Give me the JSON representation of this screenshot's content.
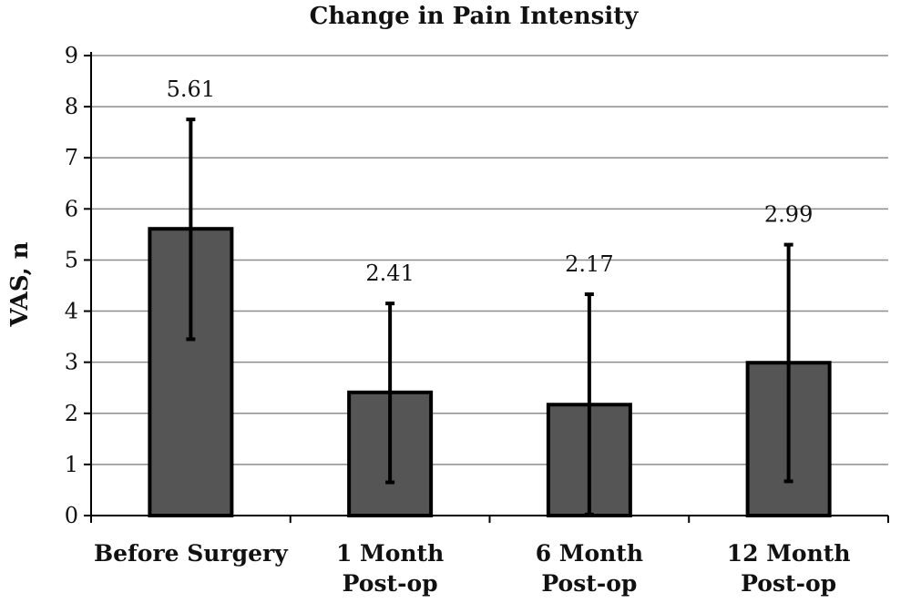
{
  "chart_data": {
    "type": "bar",
    "title": "Change in Pain Intensity",
    "xlabel": "",
    "ylabel": "VAS, n",
    "ylim": [
      0,
      9
    ],
    "yticks": [
      "0",
      "1",
      "2",
      "3",
      "4",
      "5",
      "6",
      "7",
      "8",
      "9"
    ],
    "categories": [
      [
        "Before Surgery"
      ],
      [
        "1 Month",
        "Post-op"
      ],
      [
        "6 Month",
        "Post-op"
      ],
      [
        "12 Month",
        "Post-op"
      ]
    ],
    "values": [
      5.61,
      2.41,
      2.17,
      2.99
    ],
    "data_labels": [
      "5.61",
      "2.41",
      "2.17",
      "2.99"
    ],
    "error_bars": [
      {
        "low": 3.45,
        "high": 7.75
      },
      {
        "low": 0.65,
        "high": 4.15
      },
      {
        "low": 0.02,
        "high": 4.33
      },
      {
        "low": 0.67,
        "high": 5.3
      }
    ],
    "grid": true,
    "colors": {
      "bar": "#555555",
      "bar_edge": "#000000",
      "grid": "#8c8c8c"
    }
  }
}
